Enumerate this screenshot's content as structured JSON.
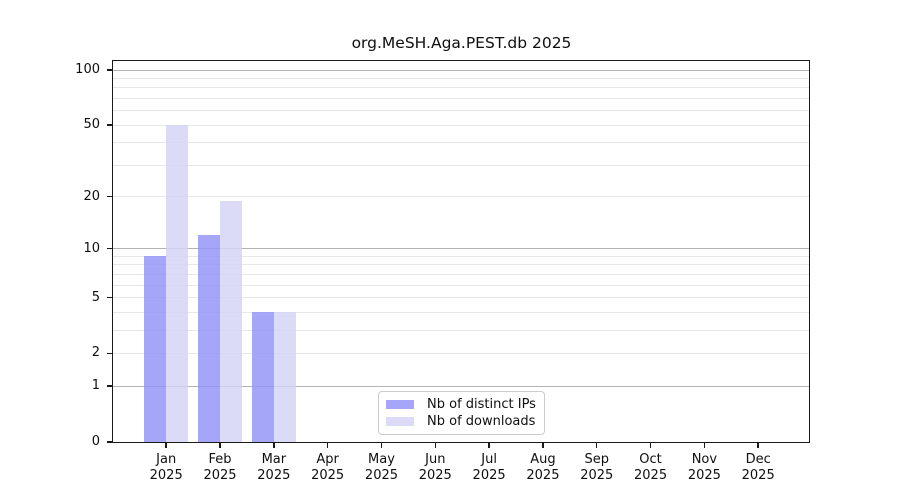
{
  "chart_data": {
    "type": "bar",
    "title": "org.MeSH.Aga.PEST.db 2025",
    "x_tick_months": [
      "Jan",
      "Feb",
      "Mar",
      "Apr",
      "May",
      "Jun",
      "Jul",
      "Aug",
      "Sep",
      "Oct",
      "Nov",
      "Dec"
    ],
    "x_tick_year": "2025",
    "series": [
      {
        "name": "Nb of distinct IPs",
        "color": "rgba(147,147,247,0.82)",
        "values": [
          9,
          12,
          4,
          0,
          0,
          0,
          0,
          0,
          0,
          0,
          0,
          0
        ]
      },
      {
        "name": "Nb of downloads",
        "color": "rgba(211,211,247,0.82)",
        "values": [
          50,
          19,
          4,
          0,
          0,
          0,
          0,
          0,
          0,
          0,
          0,
          0
        ]
      }
    ],
    "y_scale": "log1p",
    "ylim": [
      0,
      112
    ],
    "y_tick_labels": [
      0,
      1,
      2,
      5,
      10,
      20,
      50,
      100
    ],
    "y_major_gridlines": [
      1,
      10,
      100
    ],
    "y_minor_gridlines": [
      2,
      3,
      4,
      5,
      6,
      7,
      8,
      9,
      20,
      30,
      40,
      50,
      60,
      70,
      80,
      90
    ],
    "grid": true,
    "legend_position": "lower center"
  },
  "colors": {
    "major_grid": "#b4b4b4",
    "minor_grid": "#e7e7e7",
    "spine": "#1a1a1a",
    "background": "#ffffff"
  }
}
